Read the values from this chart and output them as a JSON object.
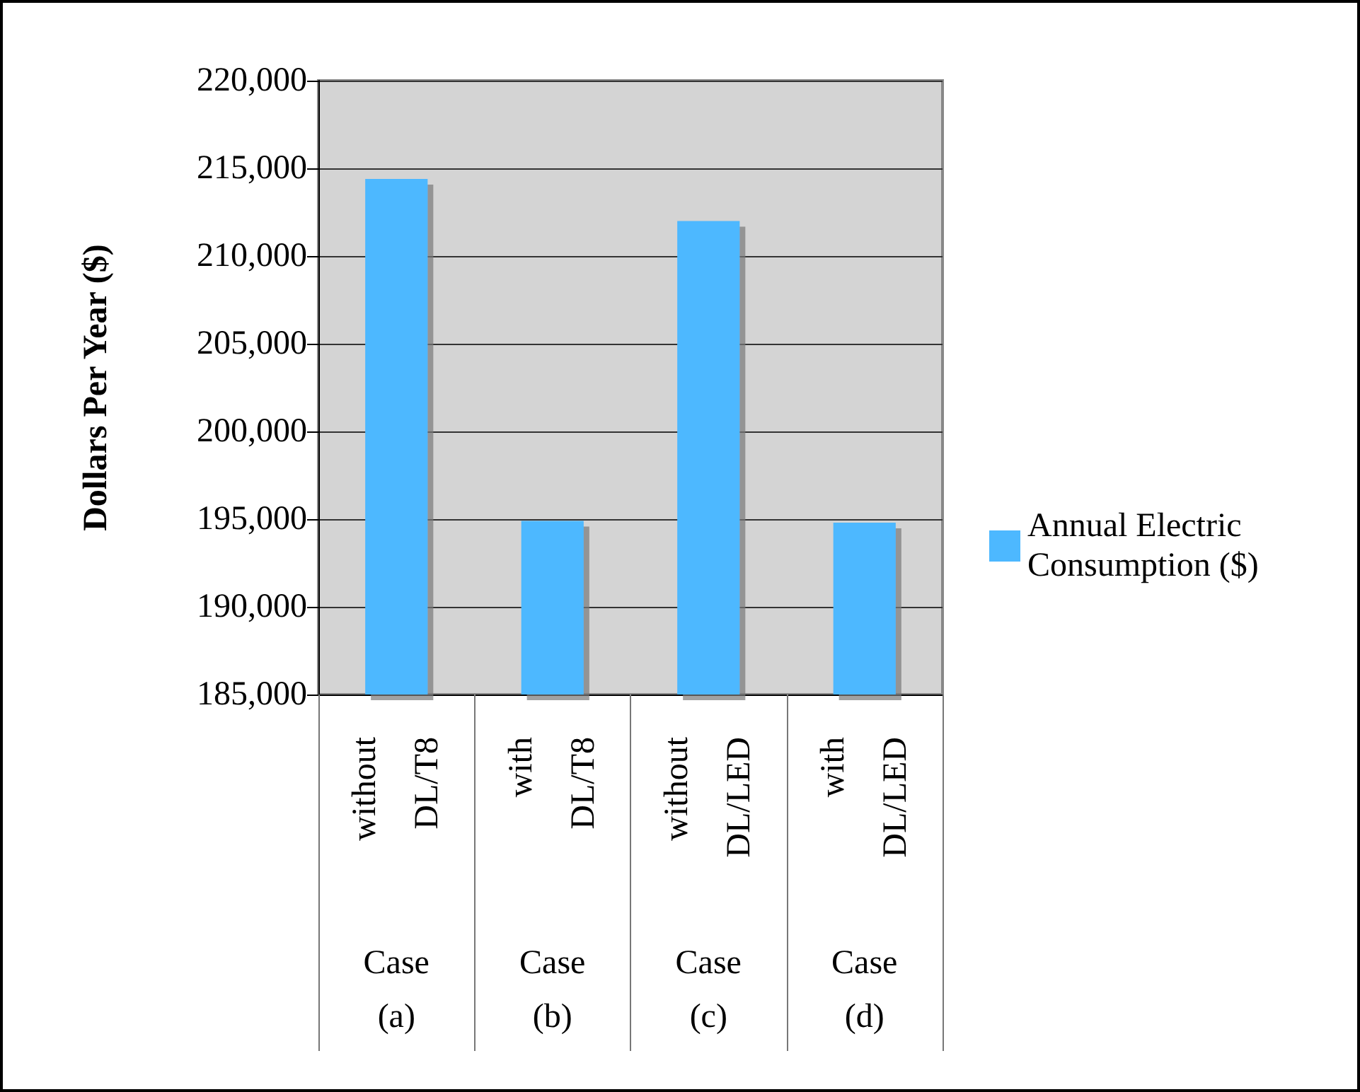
{
  "chart_data": {
    "type": "bar",
    "ylabel": "Dollars Per Year ($)",
    "categories": [
      "without DL/T8",
      "with DL/T8",
      "without DL/LED",
      "with DL/LED"
    ],
    "series": [
      {
        "name": "Annual Electric Consumption ($)",
        "color": "#4db8ff",
        "values": [
          214400,
          194900,
          212000,
          194800
        ]
      }
    ],
    "ylim": [
      185000,
      220000
    ],
    "yticks": [
      {
        "value": 185000,
        "label": "185,000"
      },
      {
        "value": 190000,
        "label": "190,000"
      },
      {
        "value": 195000,
        "label": "195,000"
      },
      {
        "value": 200000,
        "label": "200,000"
      },
      {
        "value": 205000,
        "label": "205,000"
      },
      {
        "value": 210000,
        "label": "210,000"
      },
      {
        "value": 215000,
        "label": "215,000"
      },
      {
        "value": 220000,
        "label": "220,000"
      }
    ],
    "grid": "y",
    "legend": "right",
    "annotations": [
      "Case (a)",
      "Case (b)",
      "Case (c)",
      "Case (d)"
    ]
  }
}
